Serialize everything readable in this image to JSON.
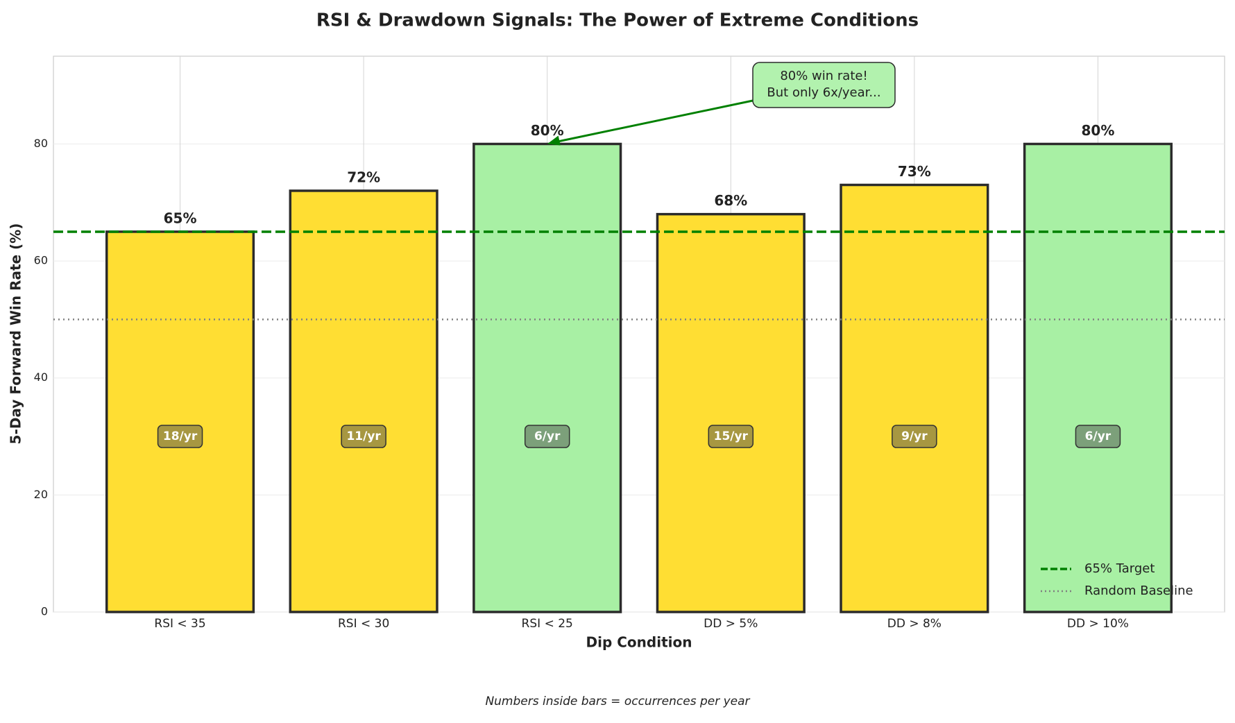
{
  "chart_data": {
    "type": "bar",
    "title": "RSI & Drawdown Signals: The Power of Extreme Conditions",
    "x_label": "Dip Condition",
    "y_label": "5-Day Forward Win Rate (%)",
    "footnote": "Numbers inside bars = occurrences per year",
    "categories": [
      "RSI < 35",
      "RSI < 30",
      "RSI < 25",
      "DD > 5%",
      "DD > 8%",
      "DD > 10%"
    ],
    "values": [
      65,
      72,
      80,
      68,
      73,
      80
    ],
    "value_labels": [
      "65%",
      "72%",
      "80%",
      "68%",
      "73%",
      "80%"
    ],
    "occurrence_labels": [
      "18/yr",
      "11/yr",
      "6/yr",
      "15/yr",
      "9/yr",
      "6/yr"
    ],
    "colors": [
      "#ffde33",
      "#ffde33",
      "#a8f0a4",
      "#ffde33",
      "#ffde33",
      "#a8f0a4"
    ],
    "reference_lines": [
      {
        "value": 65,
        "label": "65% Target",
        "color": "#008000",
        "style": "dashed"
      },
      {
        "value": 50,
        "label": "Random Baseline",
        "color": "#808080",
        "style": "dotted"
      }
    ],
    "annotation": {
      "lines": [
        "80% win rate!",
        "But only 6x/year..."
      ],
      "points_to": "RSI < 25"
    },
    "ylim": [
      0,
      95
    ],
    "yticks": [
      0,
      20,
      40,
      60,
      80
    ],
    "grid": true,
    "legend": "lower right"
  }
}
